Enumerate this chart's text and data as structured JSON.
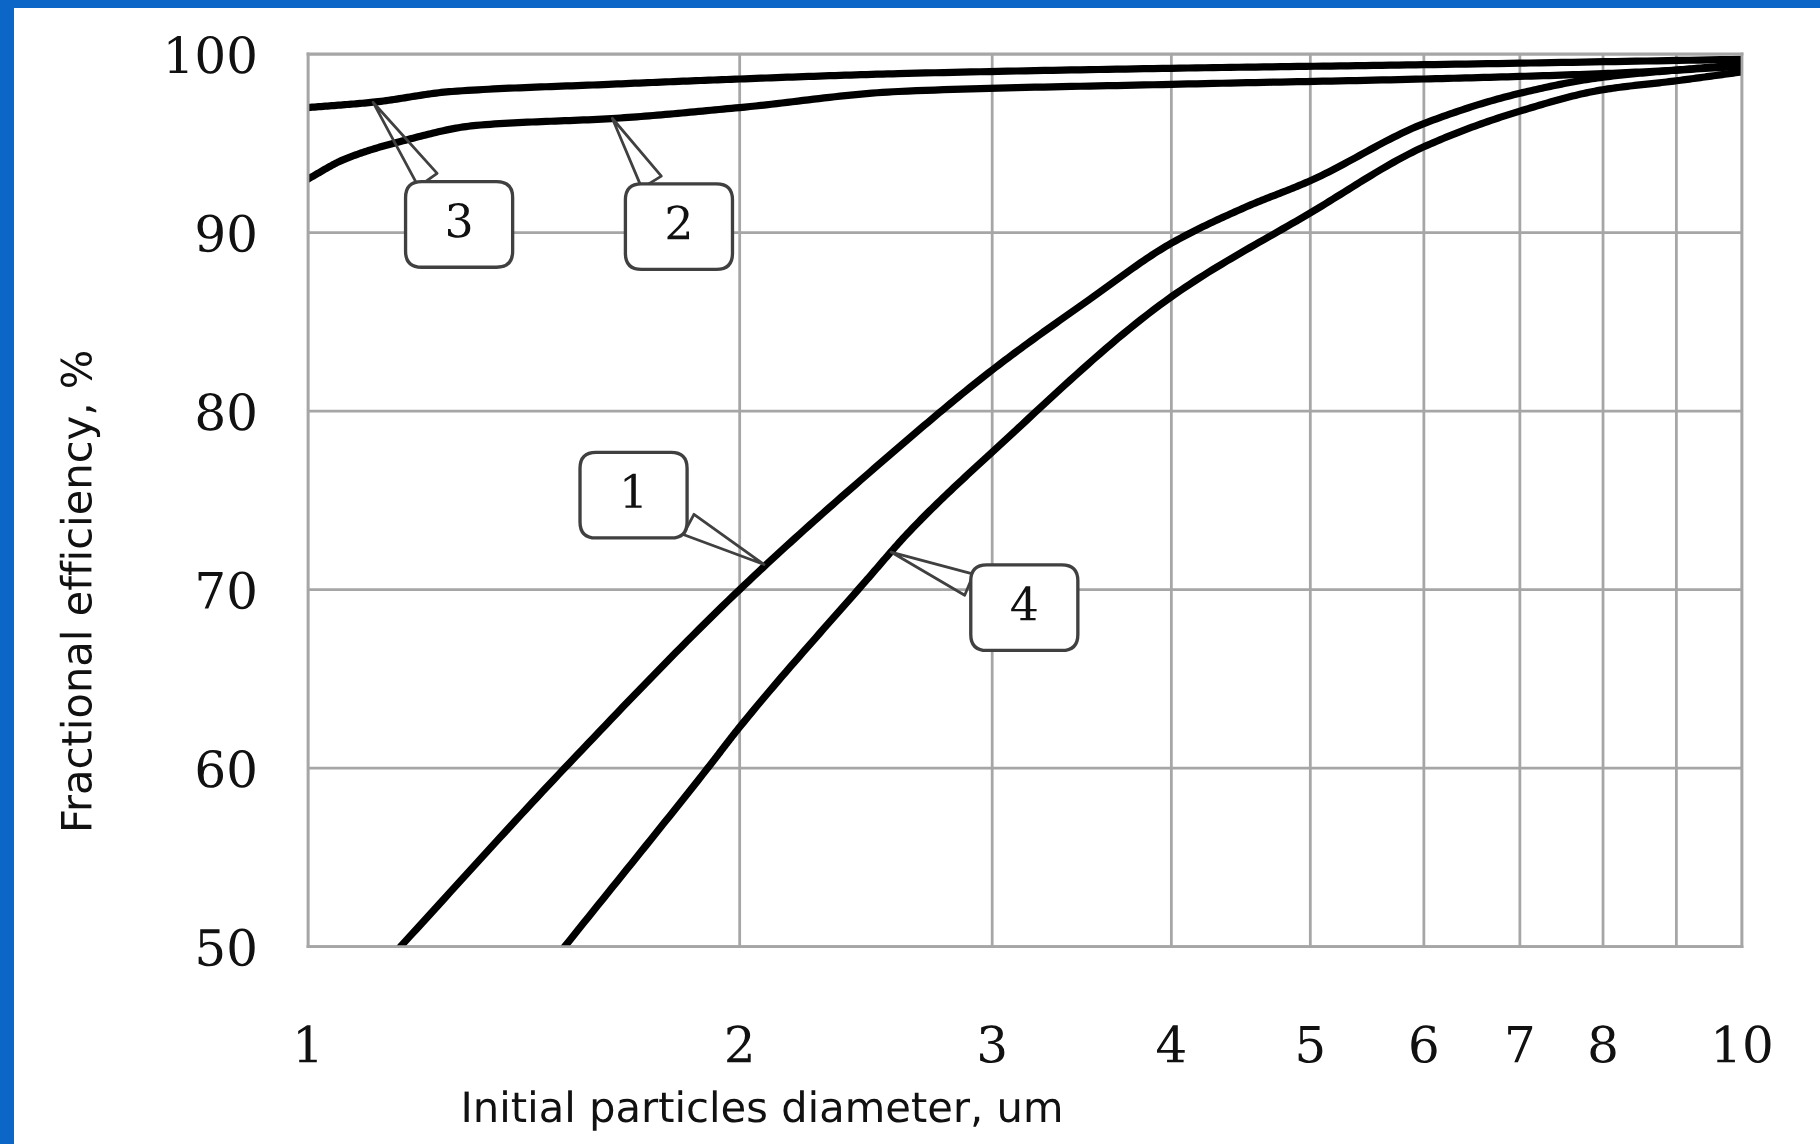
{
  "chart_data": {
    "type": "line",
    "xlabel": "Initial particles diameter, um",
    "ylabel": "Fractional efficiency, %",
    "log": "x",
    "xlim": [
      1,
      10
    ],
    "xticks": [
      1,
      2,
      3,
      4,
      5,
      6,
      7,
      8,
      {
        "value": 9,
        "label": null
      },
      10
    ],
    "ylim": [
      50,
      100
    ],
    "yticks": [
      50,
      60,
      70,
      80,
      90,
      100
    ],
    "grid": true,
    "line_style": "solid",
    "series": [
      {
        "color": "#000000",
        "x": [
          1.16,
          1.51,
          2,
          2.5,
          3,
          3.5,
          4,
          4.5,
          5,
          6,
          7,
          8,
          9,
          10
        ],
        "values": [
          50,
          60,
          70,
          77.0,
          82.3,
          86.2,
          89.4,
          91.4,
          92.9,
          96.1,
          97.8,
          98.7,
          99.1,
          99.4
        ]
      },
      {
        "color": "#000000",
        "x": [
          1,
          1.06,
          1.16,
          1.31,
          1.64,
          2,
          2.58,
          4,
          6,
          8,
          10
        ],
        "values": [
          93.0,
          94.1,
          95.1,
          96.0,
          96.4,
          97.0,
          97.9,
          98.3,
          98.6,
          98.9,
          99.3
        ]
      },
      {
        "color": "#000000",
        "x": [
          1,
          1.11,
          1.26,
          1.62,
          2,
          2.58,
          4,
          6,
          10
        ],
        "values": [
          97.0,
          97.3,
          97.9,
          98.3,
          98.6,
          98.9,
          99.2,
          99.4,
          99.7
        ]
      },
      {
        "color": "#000000",
        "x": [
          1.51,
          1.9,
          2,
          2.45,
          2.63,
          3,
          4,
          5,
          6,
          7,
          8,
          9,
          10
        ],
        "values": [
          50,
          60,
          62.3,
          70.5,
          73.3,
          77.7,
          86.4,
          91.1,
          94.8,
          96.8,
          98.0,
          98.5,
          99.0
        ]
      }
    ],
    "annotations": [
      {
        "text": "1",
        "x": 2.08,
        "y": 71.4
      },
      {
        "text": "2",
        "x": 1.63,
        "y": 96.4
      },
      {
        "text": "3",
        "x": 1.11,
        "y": 97.3
      },
      {
        "text": "4",
        "x": 2.55,
        "y": 72.1
      }
    ]
  }
}
